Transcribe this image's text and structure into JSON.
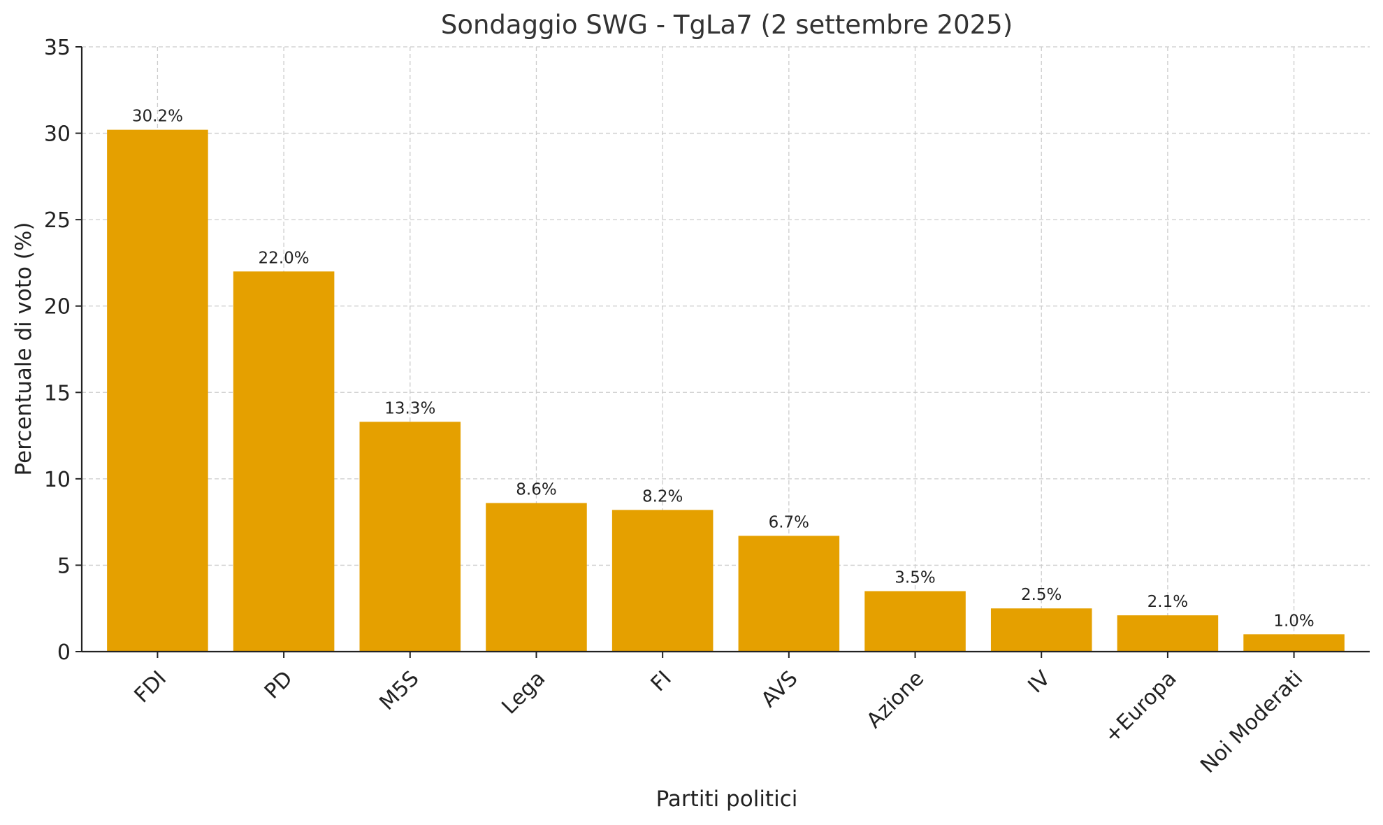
{
  "chart_data": {
    "type": "bar",
    "title": "Sondaggio SWG - TgLa7 (2 settembre 2025)",
    "xlabel": "Partiti politici",
    "ylabel": "Percentuale di voto (%)",
    "categories": [
      "FDI",
      "PD",
      "M5S",
      "Lega",
      "FI",
      "AVS",
      "Azione",
      "IV",
      "+Europa",
      "Noi Moderati"
    ],
    "values": [
      30.2,
      22.0,
      13.3,
      8.6,
      8.2,
      6.7,
      3.5,
      2.5,
      2.1,
      1.0
    ],
    "value_labels": [
      "30.2%",
      "22.0%",
      "13.3%",
      "8.6%",
      "8.2%",
      "6.7%",
      "3.5%",
      "2.5%",
      "2.1%",
      "1.0%"
    ],
    "ylim": [
      0,
      35
    ],
    "yticks": [
      0,
      5,
      10,
      15,
      20,
      25,
      30,
      35
    ],
    "grid": true,
    "bar_color": "#e5a000"
  }
}
